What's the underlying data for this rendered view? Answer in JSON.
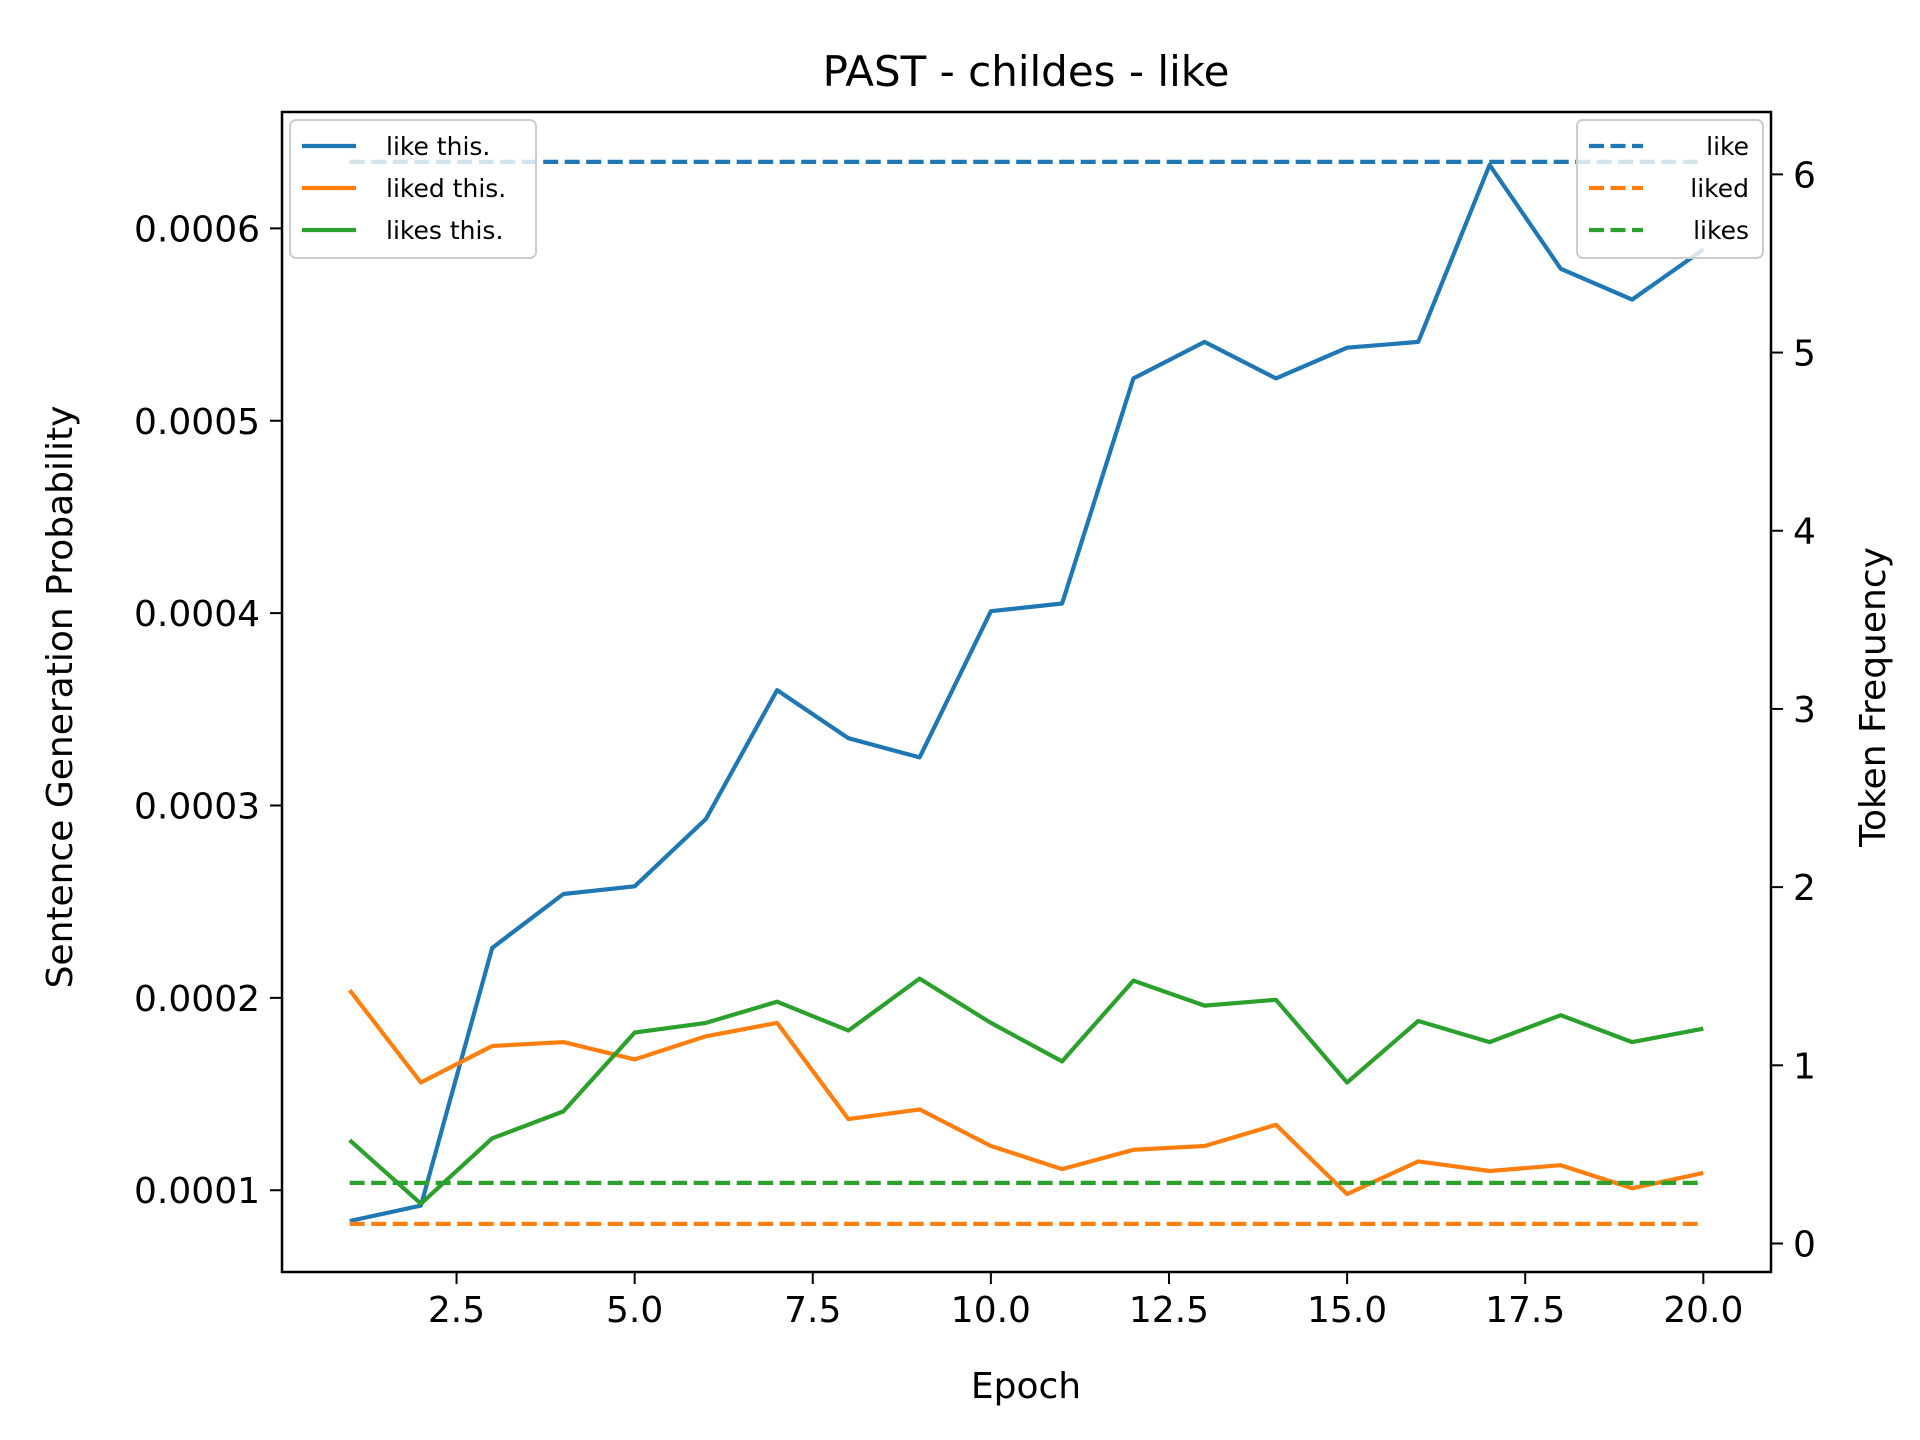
{
  "chart_data": {
    "type": "line",
    "title": "PAST - childes - like",
    "xlabel": "Epoch",
    "ylabel": "Sentence Generation Probability",
    "y2label": "Token Frequency",
    "xlim": [
      0.05,
      20.95
    ],
    "ylim": [
      5.75e-05,
      0.0006605
    ],
    "y2lim": [
      -0.16,
      6.35
    ],
    "x_ticks": [
      2.5,
      5.0,
      7.5,
      10.0,
      12.5,
      15.0,
      17.5,
      20.0
    ],
    "x_tick_labels": [
      "2.5",
      "5.0",
      "7.5",
      "10.0",
      "12.5",
      "15.0",
      "17.5",
      "20.0"
    ],
    "y_ticks": [
      0.0001,
      0.0002,
      0.0003,
      0.0004,
      0.0005,
      0.0006
    ],
    "y_tick_labels": [
      "0.0001",
      "0.0002",
      "0.0003",
      "0.0004",
      "0.0005",
      "0.0006"
    ],
    "y2_ticks": [
      0,
      1,
      2,
      3,
      4,
      5,
      6
    ],
    "y2_tick_labels": [
      "0",
      "1",
      "2",
      "3",
      "4",
      "5",
      "6"
    ],
    "x": [
      1,
      2,
      3,
      4,
      5,
      6,
      7,
      8,
      9,
      10,
      11,
      12,
      13,
      14,
      15,
      16,
      17,
      18,
      19,
      20
    ],
    "series": [
      {
        "name": "like this.",
        "axis": "left",
        "style": "solid",
        "color": "#1f77b4",
        "values": [
          8.4e-05,
          9.2e-05,
          0.000226,
          0.000254,
          0.000258,
          0.000293,
          0.00036,
          0.000335,
          0.000325,
          0.000401,
          0.000405,
          0.000522,
          0.000541,
          0.000522,
          0.000538,
          0.000541,
          0.000633,
          0.000579,
          0.000563,
          0.000589
        ]
      },
      {
        "name": "liked this.",
        "axis": "left",
        "style": "solid",
        "color": "#ff7f0e",
        "values": [
          0.000204,
          0.000156,
          0.000175,
          0.000177,
          0.000168,
          0.00018,
          0.000187,
          0.000137,
          0.000142,
          0.000123,
          0.000111,
          0.000121,
          0.000123,
          0.000134,
          9.8e-05,
          0.000115,
          0.00011,
          0.000113,
          0.000101,
          0.000109
        ]
      },
      {
        "name": "likes this.",
        "axis": "left",
        "style": "solid",
        "color": "#2ca02c",
        "values": [
          0.000126,
          9.3e-05,
          0.000127,
          0.000141,
          0.000182,
          0.000187,
          0.000198,
          0.000183,
          0.00021,
          0.000187,
          0.000167,
          0.000209,
          0.000196,
          0.000199,
          0.000156,
          0.000188,
          0.000177,
          0.000191,
          0.000177,
          0.000184
        ]
      },
      {
        "name": "like",
        "axis": "right",
        "style": "dashed",
        "color": "#1f77b4",
        "values": [
          6.07,
          6.07,
          6.07,
          6.07,
          6.07,
          6.07,
          6.07,
          6.07,
          6.07,
          6.07,
          6.07,
          6.07,
          6.07,
          6.07,
          6.07,
          6.07,
          6.07,
          6.07,
          6.07,
          6.07
        ]
      },
      {
        "name": "liked",
        "axis": "right",
        "style": "dashed",
        "color": "#ff7f0e",
        "values": [
          0.11,
          0.11,
          0.11,
          0.11,
          0.11,
          0.11,
          0.11,
          0.11,
          0.11,
          0.11,
          0.11,
          0.11,
          0.11,
          0.11,
          0.11,
          0.11,
          0.11,
          0.11,
          0.11,
          0.11
        ]
      },
      {
        "name": "likes",
        "axis": "right",
        "style": "dashed",
        "color": "#2ca02c",
        "values": [
          0.34,
          0.34,
          0.34,
          0.34,
          0.34,
          0.34,
          0.34,
          0.34,
          0.34,
          0.34,
          0.34,
          0.34,
          0.34,
          0.34,
          0.34,
          0.34,
          0.34,
          0.34,
          0.34,
          0.34
        ]
      }
    ],
    "legends": [
      {
        "placement": "top-left",
        "entries": [
          "like this.",
          "liked this.",
          "likes this."
        ]
      },
      {
        "placement": "top-right",
        "entries": [
          "like",
          "liked",
          "likes"
        ]
      }
    ],
    "grid": false
  }
}
